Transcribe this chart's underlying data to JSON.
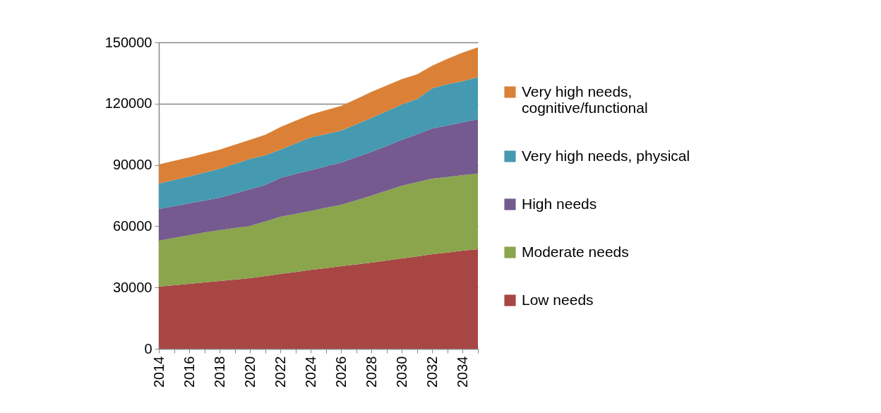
{
  "chart_data": {
    "type": "area",
    "stacked": true,
    "x": [
      2014,
      2015,
      2016,
      2017,
      2018,
      2019,
      2020,
      2021,
      2022,
      2023,
      2024,
      2025,
      2026,
      2027,
      2028,
      2029,
      2030,
      2031,
      2032,
      2033,
      2034,
      2035
    ],
    "xlim": [
      2014,
      2035
    ],
    "xticks": [
      2014,
      {
        "value": 2015,
        "label": null
      },
      2016,
      {
        "value": 2017,
        "label": null
      },
      2018,
      {
        "value": 2019,
        "label": null
      },
      2020,
      {
        "value": 2021,
        "label": null
      },
      2022,
      {
        "value": 2023,
        "label": null
      },
      2024,
      {
        "value": 2025,
        "label": null
      },
      2026,
      {
        "value": 2027,
        "label": null
      },
      2028,
      {
        "value": 2029,
        "label": null
      },
      2030,
      {
        "value": 2031,
        "label": null
      },
      2032,
      {
        "value": 2033,
        "label": null
      },
      2034,
      {
        "value": 2035,
        "label": null
      }
    ],
    "ylim": [
      0,
      150000
    ],
    "yticks": [
      0,
      30000,
      60000,
      90000,
      120000,
      150000
    ],
    "grid": "y",
    "legend": "right",
    "series": [
      {
        "name": "Low needs",
        "color": "#a84644",
        "values": [
          30400,
          31100,
          31800,
          32500,
          33200,
          33900,
          34600,
          35600,
          36600,
          37600,
          38600,
          39500,
          40400,
          41300,
          42200,
          43200,
          44200,
          45200,
          46300,
          47100,
          48000,
          48700
        ]
      },
      {
        "name": "Moderate needs",
        "color": "#8aa54b",
        "values": [
          22500,
          23200,
          23800,
          24400,
          24900,
          25200,
          25500,
          26700,
          28000,
          28400,
          28900,
          29500,
          30100,
          31400,
          32800,
          34200,
          35600,
          36400,
          37000,
          37000,
          37000,
          37000
        ]
      },
      {
        "name": "High needs",
        "color": "#745a8e",
        "values": [
          15500,
          15500,
          15600,
          15700,
          15900,
          16900,
          18000,
          17900,
          19000,
          19600,
          19900,
          20300,
          20700,
          21100,
          21400,
          21900,
          22500,
          23400,
          24500,
          25200,
          25900,
          26600
        ]
      },
      {
        "name": "Very high needs, physical",
        "color": "#4599b1",
        "values": [
          12500,
          12800,
          13100,
          13600,
          14100,
          14500,
          14900,
          14500,
          13900,
          14900,
          16100,
          15800,
          15600,
          16100,
          16600,
          17000,
          17300,
          17300,
          19700,
          20200,
          20100,
          20700
        ]
      },
      {
        "name": "Very high needs, cognitive/functional",
        "color": "#da8137",
        "values": [
          9300,
          9400,
          9400,
          9400,
          9400,
          9400,
          9300,
          10000,
          11000,
          11100,
          11200,
          11700,
          12100,
          12400,
          12800,
          12600,
          12400,
          12100,
          11100,
          12500,
          14000,
          14600
        ]
      }
    ]
  }
}
